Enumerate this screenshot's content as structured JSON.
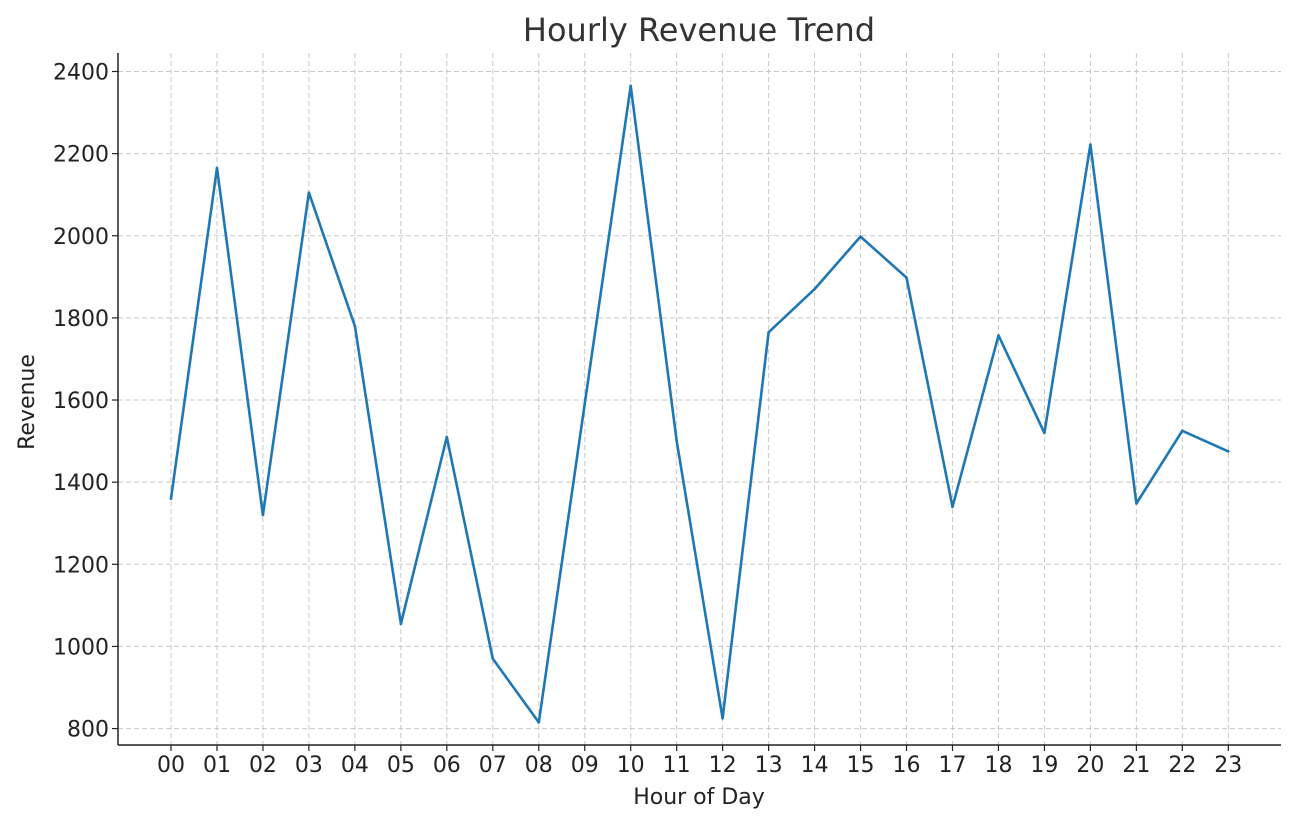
{
  "chart_data": {
    "type": "line",
    "title": "Hourly Revenue Trend",
    "xlabel": "Hour of Day",
    "ylabel": "Revenue",
    "categories": [
      "00",
      "01",
      "02",
      "03",
      "04",
      "05",
      "06",
      "07",
      "08",
      "09",
      "10",
      "11",
      "12",
      "13",
      "14",
      "15",
      "16",
      "17",
      "18",
      "19",
      "20",
      "21",
      "22",
      "23"
    ],
    "series": [
      {
        "color": "#1f77b4",
        "values": [
          1360,
          2165,
          1320,
          2105,
          1780,
          1055,
          1510,
          970,
          815,
          1590,
          2365,
          1500,
          825,
          1765,
          1870,
          1998,
          1898,
          1340,
          1757,
          1520,
          2222,
          1348,
          1525,
          1475
        ]
      }
    ],
    "ylim": [
      760,
      2445
    ],
    "yticks": [
      800,
      1000,
      1200,
      1400,
      1600,
      1800,
      2000,
      2200,
      2400
    ],
    "grid": true,
    "legend": "none"
  }
}
